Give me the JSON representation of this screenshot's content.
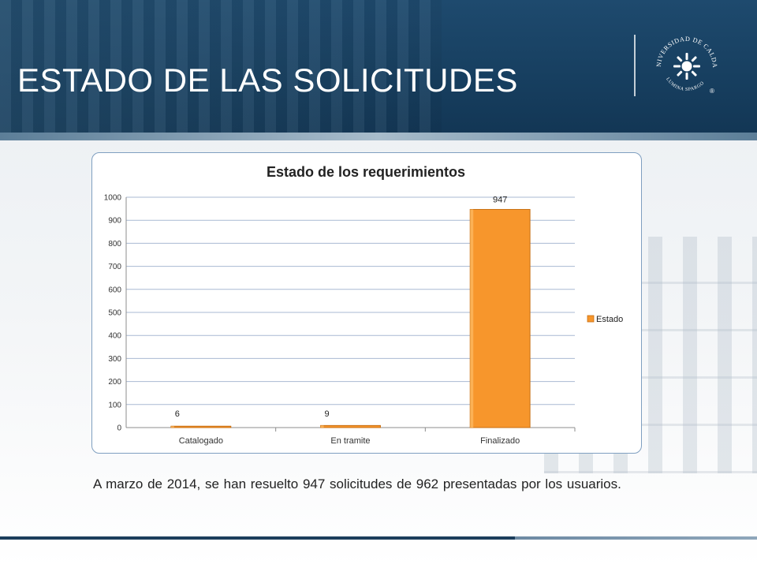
{
  "slide": {
    "title": "ESTADO DE LAS SOLICITUDES",
    "caption": "A marzo de 2014, se han resuelto 947 solicitudes  de 962 presentadas por los usuarios.",
    "logo_text": "UNIVERSIDAD DE CALDAS",
    "logo_motto": "LUMINA SPARGO",
    "logo_mark": "®"
  },
  "colors": {
    "header_blue": "#173f60",
    "bar_orange": "#f7962c",
    "bar_edge": "#c86f12",
    "grid": "#a9b9d3",
    "card_border": "#7f9fc0"
  },
  "chart_data": {
    "type": "bar",
    "title": "Estado de los requerimientos",
    "categories": [
      "Catalogado",
      "En tramite",
      "Finalizado"
    ],
    "series": [
      {
        "name": "Estado",
        "values": [
          6,
          9,
          947
        ]
      }
    ],
    "data_labels": [
      "6",
      "9",
      "947"
    ],
    "ylim": [
      0,
      1000
    ],
    "yticks": [
      0,
      100,
      200,
      300,
      400,
      500,
      600,
      700,
      800,
      900,
      1000
    ],
    "grid": true,
    "legend": "right",
    "xlabel": "",
    "ylabel": ""
  }
}
